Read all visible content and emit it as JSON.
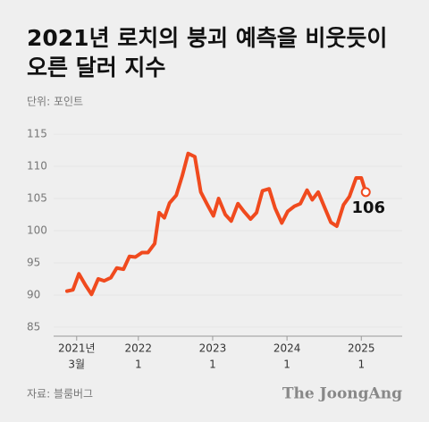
{
  "chart_data": {
    "type": "line",
    "title": [
      "2021년 로치의 붕괴 예측을 비웃듯이",
      "오른 달러 지수"
    ],
    "subtitle": "단위: 포인트",
    "x": [
      2021.04,
      2021.12,
      2021.2,
      2021.29,
      2021.37,
      2021.46,
      2021.54,
      2021.63,
      2021.71,
      2021.8,
      2021.88,
      2021.96,
      2022.05,
      2022.13,
      2022.22,
      2022.28,
      2022.35,
      2022.42,
      2022.51,
      2022.59,
      2022.67,
      2022.76,
      2022.84,
      2022.93,
      2023.01,
      2023.08,
      2023.17,
      2023.25,
      2023.34,
      2023.42,
      2023.51,
      2023.59,
      2023.67,
      2023.76,
      2023.84,
      2023.93,
      2024.01,
      2024.1,
      2024.18,
      2024.27,
      2024.34,
      2024.42,
      2024.51,
      2024.59,
      2024.67,
      2024.76,
      2024.84,
      2024.93,
      2025.0,
      2025.06
    ],
    "series": [
      {
        "name": "달러 지수",
        "color": "#f04a1e",
        "values": [
          90.6,
          90.8,
          93.3,
          91.5,
          90.1,
          92.5,
          92.2,
          92.7,
          94.2,
          94.0,
          96.0,
          95.9,
          96.6,
          96.6,
          98.0,
          102.8,
          102.0,
          104.3,
          105.5,
          108.5,
          112.0,
          111.5,
          106.0,
          104.0,
          102.3,
          105.0,
          102.5,
          101.5,
          104.2,
          103.0,
          101.8,
          102.8,
          106.2,
          106.5,
          103.5,
          101.2,
          103.0,
          103.8,
          104.2,
          106.3,
          104.8,
          106.0,
          103.5,
          101.3,
          100.7,
          104.0,
          105.3,
          108.2,
          108.2,
          106
        ]
      }
    ],
    "end_label": "106",
    "xlim": [
      2020.86,
      2025.55
    ],
    "xticks": [
      {
        "value": 2021.17,
        "label": "2021년",
        "month": "3월"
      },
      {
        "value": 2022,
        "label": "2022",
        "month": "1"
      },
      {
        "value": 2023,
        "label": "2023",
        "month": "1"
      },
      {
        "value": 2024,
        "label": "2024",
        "month": "1"
      },
      {
        "value": 2025,
        "label": "2025",
        "month": "1"
      }
    ],
    "ylim": [
      83.6,
      116.4
    ],
    "yticks": [
      85,
      90,
      95,
      100,
      105,
      110,
      115
    ],
    "source": "자료: 블룸버그",
    "logo": "The JoongAng"
  }
}
